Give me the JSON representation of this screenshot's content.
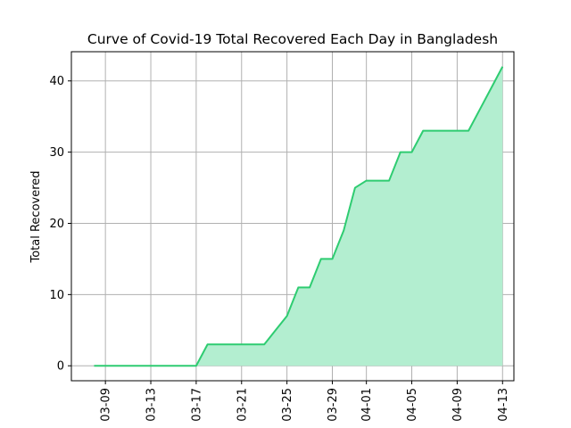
{
  "chart_data": {
    "type": "area",
    "title": "Curve of Covid-19 Total Recovered Each Day in Bangladesh",
    "xlabel": "",
    "ylabel": "Total Recovered",
    "grid": true,
    "line_color": "#2ecc71",
    "fill_color": "#b3eed0",
    "grid_color": "#b0b0b0",
    "xlim": [
      "2020-03-06",
      "2020-04-14"
    ],
    "ylim": [
      -2.1,
      44.1
    ],
    "x_ticks": [
      {
        "date": "2020-03-09",
        "label": "03-09"
      },
      {
        "date": "2020-03-13",
        "label": "03-13"
      },
      {
        "date": "2020-03-17",
        "label": "03-17"
      },
      {
        "date": "2020-03-21",
        "label": "03-21"
      },
      {
        "date": "2020-03-25",
        "label": "03-25"
      },
      {
        "date": "2020-03-29",
        "label": "03-29"
      },
      {
        "date": "2020-04-01",
        "label": "04-01"
      },
      {
        "date": "2020-04-05",
        "label": "04-05"
      },
      {
        "date": "2020-04-09",
        "label": "04-09"
      },
      {
        "date": "2020-04-13",
        "label": "04-13"
      }
    ],
    "y_ticks": [
      0,
      10,
      20,
      30,
      40
    ],
    "series": [
      {
        "x": [
          "2020-03-08",
          "2020-03-09",
          "2020-03-10",
          "2020-03-11",
          "2020-03-12",
          "2020-03-13",
          "2020-03-14",
          "2020-03-15",
          "2020-03-16",
          "2020-03-17",
          "2020-03-18",
          "2020-03-19",
          "2020-03-20",
          "2020-03-21",
          "2020-03-22",
          "2020-03-23",
          "2020-03-24",
          "2020-03-25",
          "2020-03-26",
          "2020-03-27",
          "2020-03-28",
          "2020-03-29",
          "2020-03-30",
          "2020-03-31",
          "2020-04-01",
          "2020-04-02",
          "2020-04-03",
          "2020-04-04",
          "2020-04-05",
          "2020-04-06",
          "2020-04-07",
          "2020-04-08",
          "2020-04-09",
          "2020-04-10",
          "2020-04-11",
          "2020-04-12",
          "2020-04-13"
        ],
        "values": [
          0,
          0,
          0,
          0,
          0,
          0,
          0,
          0,
          0,
          0,
          3,
          3,
          3,
          3,
          3,
          3,
          5,
          7,
          11,
          11,
          15,
          15,
          19,
          25,
          26,
          26,
          26,
          30,
          30,
          33,
          33,
          33,
          33,
          33,
          36,
          39,
          42
        ]
      }
    ]
  }
}
